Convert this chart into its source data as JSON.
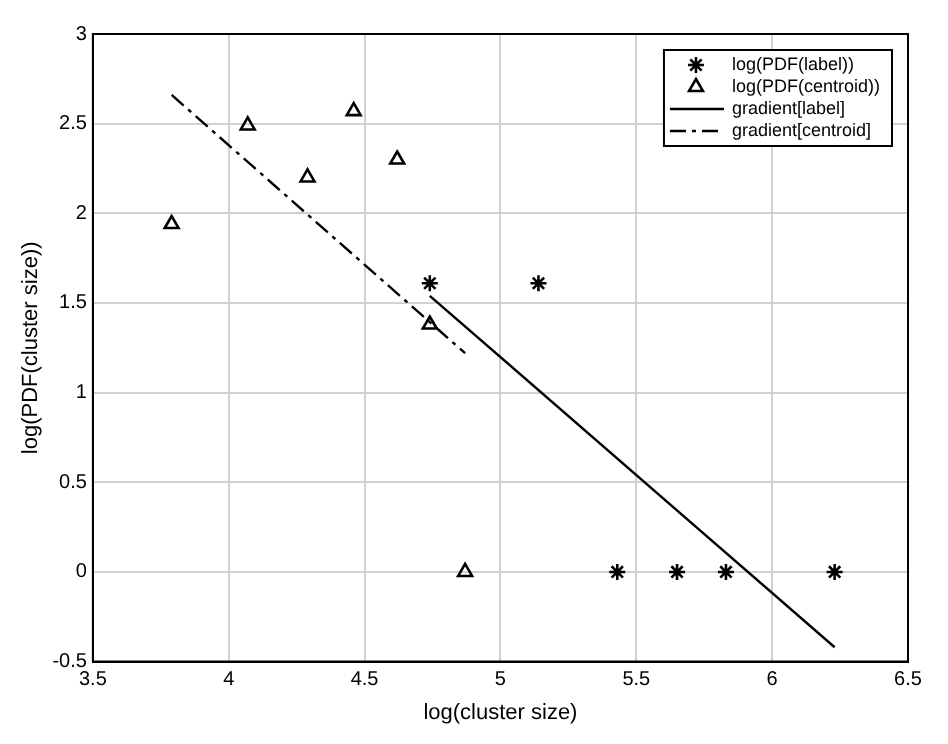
{
  "chart_data": {
    "type": "scatter",
    "xlabel": "log(cluster size)",
    "ylabel": "log(PDF(cluster size))",
    "xlim": [
      3.5,
      6.5
    ],
    "xticks": [
      3.5,
      4,
      4.5,
      5,
      5.5,
      6,
      6.5
    ],
    "ylim": [
      -0.5,
      3
    ],
    "yticks": [
      -0.5,
      0,
      0.5,
      1,
      1.5,
      2,
      2.5,
      3
    ],
    "grid": true,
    "legend": "top right",
    "series": [
      {
        "name": "log(PDF(label))",
        "type": "scatter",
        "marker": "cross",
        "color": "#000000",
        "x": [
          4.74,
          5.14,
          5.43,
          5.65,
          5.83,
          6.23
        ],
        "values": [
          1.61,
          1.61,
          0,
          0,
          0,
          0
        ]
      },
      {
        "name": "log(PDF(centroid))",
        "type": "scatter",
        "marker": "triangle",
        "color": "#000000",
        "x": [
          3.79,
          4.07,
          4.29,
          4.46,
          4.62,
          4.74,
          4.87
        ],
        "values": [
          1.94,
          2.49,
          2.2,
          2.57,
          2.3,
          1.38,
          0
        ]
      },
      {
        "name": "gradient[label]",
        "type": "line",
        "marker": "none",
        "line_style": "solid",
        "color": "#000000",
        "x": [
          4.74,
          6.23
        ],
        "values": [
          1.54,
          -0.42
        ]
      },
      {
        "name": "gradient[centroid]",
        "type": "line",
        "marker": "none",
        "line_style": "dashed",
        "color": "#000000",
        "x": [
          3.79,
          4.87
        ],
        "values": [
          2.66,
          1.22
        ]
      }
    ]
  }
}
